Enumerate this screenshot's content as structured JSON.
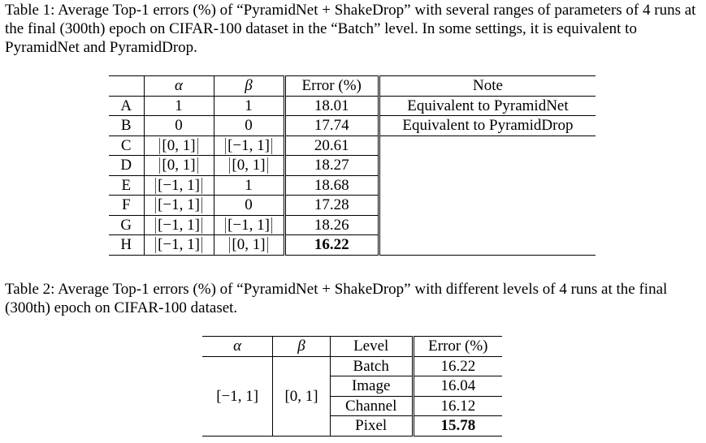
{
  "table1": {
    "caption": "Table 1: Average Top-1 errors (%) of “PyramidNet + ShakeDrop” with several ranges of parameters of 4 runs at the final (300th) epoch on CIFAR-100 dataset in the “Batch” level. In some settings, it is equivalent to PyramidNet and PyramidDrop.",
    "headers": {
      "id": "",
      "alpha": "α",
      "beta": "β",
      "error": "Error (%)",
      "note": "Note"
    },
    "rows": [
      {
        "id": "A",
        "alpha": "1",
        "beta": "1",
        "error": "18.01",
        "note": "Equivalent to PyramidNet"
      },
      {
        "id": "B",
        "alpha": "0",
        "beta": "0",
        "error": "17.74",
        "note": "Equivalent to PyramidDrop"
      },
      {
        "id": "C",
        "alpha": "[0, 1]",
        "beta": "[−1, 1]",
        "error": "20.61",
        "note": ""
      },
      {
        "id": "D",
        "alpha": "[0, 1]",
        "beta": "[0, 1]",
        "error": "18.27",
        "note": ""
      },
      {
        "id": "E",
        "alpha": "[−1, 1]",
        "beta": "1",
        "error": "18.68",
        "note": ""
      },
      {
        "id": "F",
        "alpha": "[−1, 1]",
        "beta": "0",
        "error": "17.28",
        "note": ""
      },
      {
        "id": "G",
        "alpha": "[−1, 1]",
        "beta": "[−1, 1]",
        "error": "18.26",
        "note": ""
      },
      {
        "id": "H",
        "alpha": "[−1, 1]",
        "beta": "[0, 1]",
        "error": "16.22",
        "note": ""
      }
    ]
  },
  "table2": {
    "caption": "Table 2: Average Top-1 errors (%) of “PyramidNet + ShakeDrop” with different levels of 4 runs at the final (300th) epoch on CIFAR-100 dataset.",
    "headers": {
      "alpha": "α",
      "beta": "β",
      "level": "Level",
      "error": "Error (%)"
    },
    "alpha": "[−1, 1]",
    "beta": "[0, 1]",
    "rows": [
      {
        "level": "Batch",
        "error": "16.22"
      },
      {
        "level": "Image",
        "error": "16.04"
      },
      {
        "level": "Channel",
        "error": "16.12"
      },
      {
        "level": "Pixel",
        "error": "15.78"
      }
    ]
  }
}
